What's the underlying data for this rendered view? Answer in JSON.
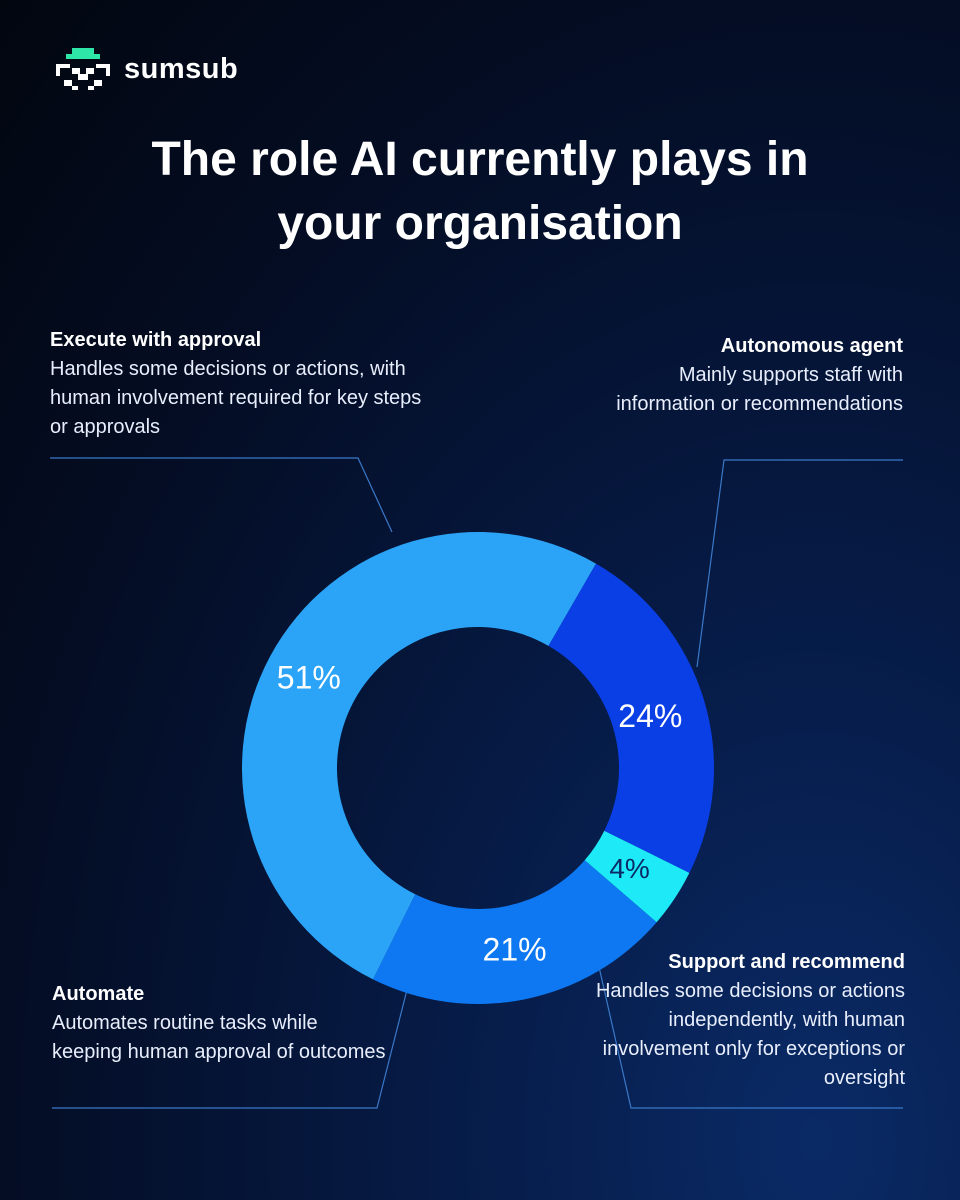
{
  "brand": {
    "name": "sumsub",
    "logo_icon": "pixel-space-invader-icon",
    "accent": "#2ee6a8"
  },
  "chart_data": {
    "type": "pie",
    "donut": true,
    "title_lines": [
      "The role AI currently plays in",
      "your organisation"
    ],
    "slices": [
      {
        "label": "Execute with approval",
        "description": "Handles some decisions or actions, with human involvement required for key steps or approvals",
        "value": 51,
        "display": "51%",
        "color": "#2ba4f7"
      },
      {
        "label": "Autonomous agent",
        "description": "Mainly supports staff with information or recommendations",
        "value": 21,
        "display": "21%",
        "color": "#0d78f2"
      },
      {
        "label": "Support and recommend",
        "description": "Handles some decisions or actions independently, with human involvement only for exceptions or oversight",
        "value": 4,
        "display": "4%",
        "color": "#1ee9f7"
      },
      {
        "label": "Automate",
        "description": "Automates routine tasks while keeping human approval of outcomes",
        "value": 24,
        "display": "24%",
        "color": "#0a3fe6"
      }
    ],
    "start_angle_deg": -60
  }
}
